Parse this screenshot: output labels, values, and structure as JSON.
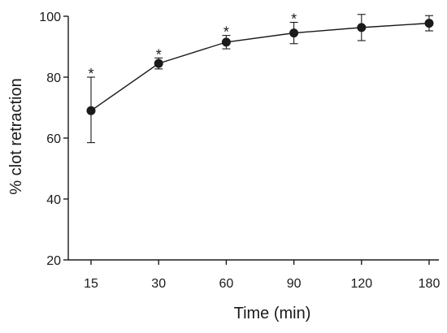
{
  "chart_data": {
    "type": "line",
    "title": "",
    "xlabel": "Time (min)",
    "ylabel": "% clot retraction",
    "categories": [
      "15",
      "30",
      "60",
      "90",
      "120",
      "180"
    ],
    "ylim": [
      20,
      100
    ],
    "yticks": [
      "20",
      "40",
      "60",
      "80",
      "100"
    ],
    "grid": false,
    "legend": "none",
    "series": [
      {
        "values": [
          69,
          84.5,
          91.5,
          94.5,
          96.3,
          97.7
        ],
        "error_upper": [
          80,
          86.3,
          93.7,
          98,
          100.6,
          100.2
        ],
        "error_lower": [
          58.5,
          82.7,
          89.3,
          91,
          92,
          95.2
        ],
        "significance": [
          "*",
          "*",
          "*",
          "*",
          "",
          ""
        ],
        "color": "#1a1a1a"
      }
    ]
  }
}
